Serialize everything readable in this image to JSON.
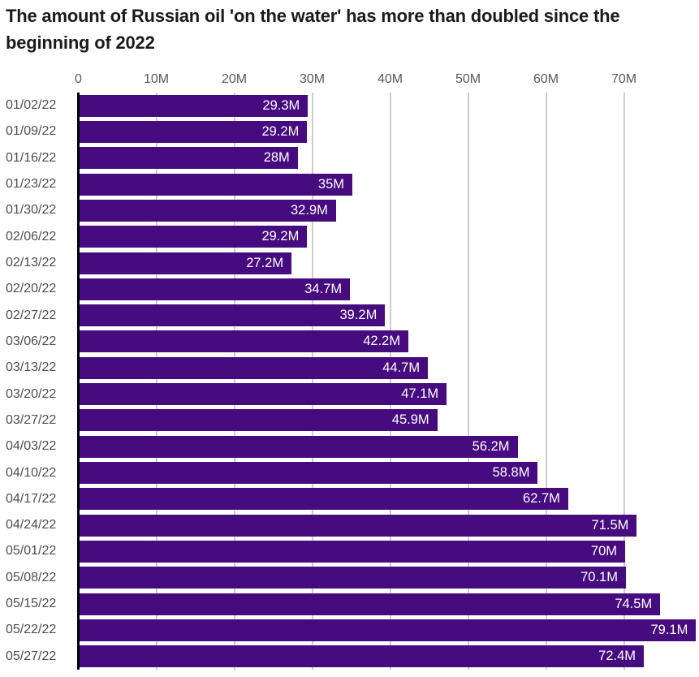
{
  "chart_data": {
    "type": "bar",
    "orientation": "horizontal",
    "title": "The amount of Russian oil 'on the water' has more than doubled since the beginning of 2022",
    "categories": [
      "01/02/22",
      "01/09/22",
      "01/16/22",
      "01/23/22",
      "01/30/22",
      "02/06/22",
      "02/13/22",
      "02/20/22",
      "02/27/22",
      "03/06/22",
      "03/13/22",
      "03/20/22",
      "03/27/22",
      "04/03/22",
      "04/10/22",
      "04/17/22",
      "04/24/22",
      "05/01/22",
      "05/08/22",
      "05/15/22",
      "05/22/22",
      "05/27/22"
    ],
    "values": [
      29.3,
      29.2,
      28,
      35,
      32.9,
      29.2,
      27.2,
      34.7,
      39.2,
      42.2,
      44.7,
      47.1,
      45.9,
      56.2,
      58.8,
      62.7,
      71.5,
      70,
      70.1,
      74.5,
      79.1,
      72.4
    ],
    "bar_labels": [
      "29.3M",
      "29.2M",
      "28M",
      "35M",
      "32.9M",
      "29.2M",
      "27.2M",
      "34.7M",
      "39.2M",
      "42.2M",
      "44.7M",
      "47.1M",
      "45.9M",
      "56.2M",
      "58.8M",
      "62.7M",
      "71.5M",
      "70M",
      "70.1M",
      "74.5M",
      "79.1M",
      "72.4M"
    ],
    "x_ticks": {
      "labels": [
        "0",
        "10M",
        "20M",
        "30M",
        "40M",
        "50M",
        "60M",
        "70M"
      ],
      "values": [
        0,
        10,
        20,
        30,
        40,
        50,
        60,
        70
      ]
    },
    "xlim": [
      0,
      79.7
    ],
    "xlabel": "",
    "ylabel": "",
    "grid": true,
    "legend_position": "none",
    "colors": {
      "bar": "#470b80",
      "bar_label": "#ffffff",
      "title": "#1b1b1b",
      "tick_label": "#55585c",
      "category_label": "#4d4d4d",
      "gridline": "#cdcdcd",
      "axis_line": "#000000",
      "background": "#ffffff"
    }
  }
}
